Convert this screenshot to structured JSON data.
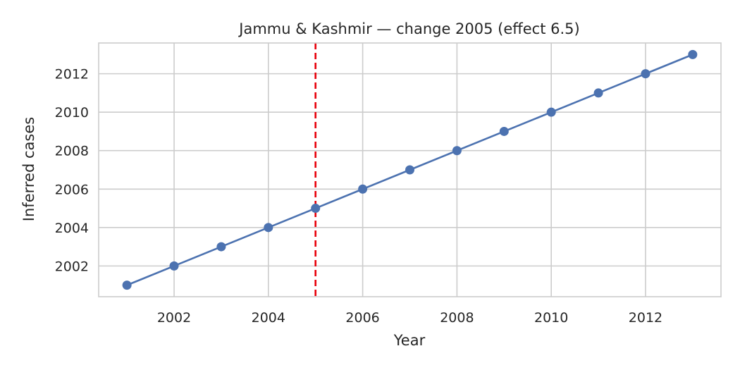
{
  "chart_data": {
    "type": "line",
    "title": "Jammu & Kashmir — change 2005 (effect 6.5)",
    "xlabel": "Year",
    "ylabel": "Inferred cases",
    "x": [
      2001,
      2002,
      2003,
      2004,
      2005,
      2006,
      2007,
      2008,
      2009,
      2010,
      2011,
      2012,
      2013
    ],
    "series": [
      {
        "values": [
          2001,
          2002,
          2003,
          2004,
          2005,
          2006,
          2007,
          2008,
          2009,
          2010,
          2011,
          2012,
          2013
        ]
      }
    ],
    "xlim": [
      2000.4,
      2013.6
    ],
    "ylim": [
      2000.4,
      2013.6
    ],
    "xticks": [
      2002,
      2004,
      2006,
      2008,
      2010,
      2012
    ],
    "yticks": [
      2002,
      2004,
      2006,
      2008,
      2010,
      2012
    ],
    "change_point": 2005,
    "grid": true,
    "colors": {
      "line": "#4c72b0",
      "change_line": "#e8000b",
      "grid": "#cccccc",
      "frame": "#cccccc"
    }
  }
}
